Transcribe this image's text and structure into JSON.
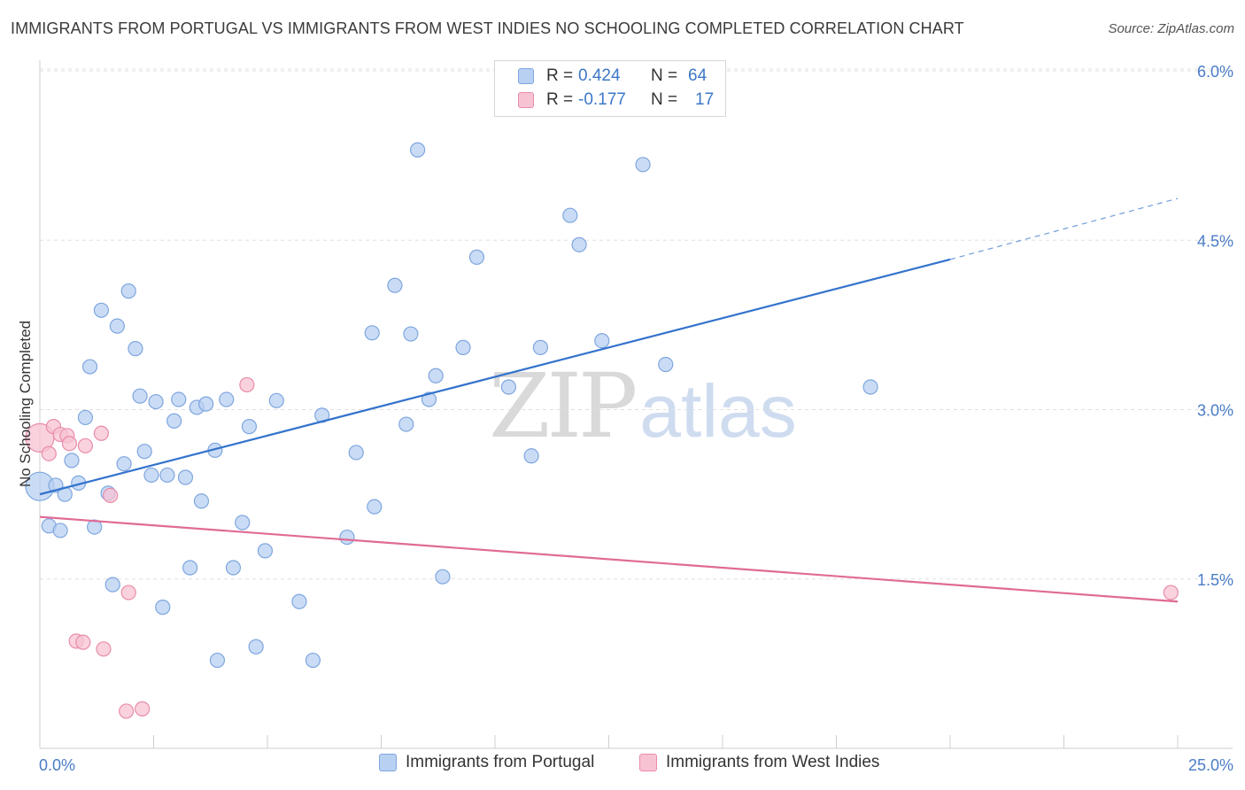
{
  "title": "IMMIGRANTS FROM PORTUGAL VS IMMIGRANTS FROM WEST INDIES NO SCHOOLING COMPLETED CORRELATION CHART",
  "source": "Source: ZipAtlas.com",
  "watermark": {
    "zip": "ZIP",
    "atlas": "atlas"
  },
  "legend": {
    "r_label": "R =",
    "n_label": "N =",
    "series": [
      {
        "r": "0.424",
        "n": "64"
      },
      {
        "r": "-0.177",
        "n": "17"
      }
    ]
  },
  "bottom_legend": [
    "Immigrants from Portugal",
    "Immigrants from West Indies"
  ],
  "colors": {
    "portugal_fill": "#b8d0f2",
    "portugal_stroke": "#7ea6df",
    "portugal_line": "#3373cc",
    "westindies_fill": "#f7c3d3",
    "westindies_stroke": "#e98ca8",
    "westindies_line": "#e06b94",
    "tick_label": "#4a7cc7",
    "grid": "#e0e0e0"
  },
  "chart_data": {
    "type": "scatter",
    "xlabel": "",
    "ylabel": "No Schooling Completed",
    "xlim": [
      0,
      25
    ],
    "ylim": [
      0,
      6.2
    ],
    "x_tick_labels": [
      {
        "value": 0,
        "label": "0.0%"
      },
      {
        "value": 25,
        "label": "25.0%"
      }
    ],
    "y_tick_labels": [
      {
        "value": 1.5,
        "label": "1.5%"
      },
      {
        "value": 3.0,
        "label": "3.0%"
      },
      {
        "value": 4.5,
        "label": "4.5%"
      },
      {
        "value": 6.0,
        "label": "6.0%"
      }
    ],
    "x_minor_ticks": [
      2.5,
      5,
      7.5,
      10,
      12.5,
      15,
      17.5,
      20,
      22.5,
      25
    ],
    "grid": true,
    "series": [
      {
        "name": "Immigrants from Portugal",
        "trend": {
          "x": [
            0,
            20
          ],
          "y": [
            2.25,
            4.33
          ],
          "dashed_to": {
            "x": 25,
            "y": 4.87
          }
        },
        "points": [
          {
            "x": 0.0,
            "y": 2.32,
            "big": true
          },
          {
            "x": 0.2,
            "y": 1.97
          },
          {
            "x": 0.35,
            "y": 2.33
          },
          {
            "x": 0.45,
            "y": 1.93
          },
          {
            "x": 0.55,
            "y": 2.25
          },
          {
            "x": 0.7,
            "y": 2.55
          },
          {
            "x": 0.85,
            "y": 2.35
          },
          {
            "x": 1.0,
            "y": 2.93
          },
          {
            "x": 1.1,
            "y": 3.38
          },
          {
            "x": 1.2,
            "y": 1.96
          },
          {
            "x": 1.35,
            "y": 3.88
          },
          {
            "x": 1.5,
            "y": 2.26
          },
          {
            "x": 1.6,
            "y": 1.45
          },
          {
            "x": 1.7,
            "y": 3.74
          },
          {
            "x": 1.85,
            "y": 2.52
          },
          {
            "x": 1.95,
            "y": 4.05
          },
          {
            "x": 2.1,
            "y": 3.54
          },
          {
            "x": 2.2,
            "y": 3.12
          },
          {
            "x": 2.3,
            "y": 2.63
          },
          {
            "x": 2.45,
            "y": 2.42
          },
          {
            "x": 2.55,
            "y": 3.07
          },
          {
            "x": 2.7,
            "y": 1.25
          },
          {
            "x": 2.8,
            "y": 2.42
          },
          {
            "x": 2.95,
            "y": 2.9
          },
          {
            "x": 3.05,
            "y": 3.09
          },
          {
            "x": 3.2,
            "y": 2.4
          },
          {
            "x": 3.3,
            "y": 1.6
          },
          {
            "x": 3.45,
            "y": 3.02
          },
          {
            "x": 3.55,
            "y": 2.19
          },
          {
            "x": 3.65,
            "y": 3.05
          },
          {
            "x": 3.85,
            "y": 2.64
          },
          {
            "x": 3.9,
            "y": 0.78
          },
          {
            "x": 4.1,
            "y": 3.09
          },
          {
            "x": 4.25,
            "y": 1.6
          },
          {
            "x": 4.45,
            "y": 2.0
          },
          {
            "x": 4.6,
            "y": 2.85
          },
          {
            "x": 4.75,
            "y": 0.9
          },
          {
            "x": 4.95,
            "y": 1.75
          },
          {
            "x": 5.2,
            "y": 3.08
          },
          {
            "x": 5.7,
            "y": 1.3
          },
          {
            "x": 6.0,
            "y": 0.78
          },
          {
            "x": 6.2,
            "y": 2.95
          },
          {
            "x": 6.75,
            "y": 1.87
          },
          {
            "x": 6.95,
            "y": 2.62
          },
          {
            "x": 7.3,
            "y": 3.68
          },
          {
            "x": 7.35,
            "y": 2.14
          },
          {
            "x": 7.8,
            "y": 4.1
          },
          {
            "x": 8.05,
            "y": 2.87
          },
          {
            "x": 8.15,
            "y": 3.67
          },
          {
            "x": 8.3,
            "y": 5.3
          },
          {
            "x": 8.55,
            "y": 3.09
          },
          {
            "x": 8.7,
            "y": 3.3
          },
          {
            "x": 8.85,
            "y": 1.52
          },
          {
            "x": 9.3,
            "y": 3.55
          },
          {
            "x": 9.6,
            "y": 4.35
          },
          {
            "x": 10.3,
            "y": 3.2
          },
          {
            "x": 10.8,
            "y": 2.59
          },
          {
            "x": 11.0,
            "y": 3.55
          },
          {
            "x": 11.65,
            "y": 4.72
          },
          {
            "x": 11.85,
            "y": 4.46
          },
          {
            "x": 12.35,
            "y": 3.61
          },
          {
            "x": 13.25,
            "y": 5.17
          },
          {
            "x": 13.75,
            "y": 3.4
          },
          {
            "x": 18.25,
            "y": 3.2
          }
        ]
      },
      {
        "name": "Immigrants from West Indies",
        "trend": {
          "x": [
            0,
            25
          ],
          "y": [
            2.05,
            1.3
          ]
        },
        "points": [
          {
            "x": 0.0,
            "y": 2.75,
            "big": true
          },
          {
            "x": 0.2,
            "y": 2.61
          },
          {
            "x": 0.3,
            "y": 2.85
          },
          {
            "x": 0.45,
            "y": 2.78
          },
          {
            "x": 0.6,
            "y": 2.77
          },
          {
            "x": 0.65,
            "y": 2.7
          },
          {
            "x": 0.8,
            "y": 0.95
          },
          {
            "x": 0.95,
            "y": 0.94
          },
          {
            "x": 1.0,
            "y": 2.68
          },
          {
            "x": 1.35,
            "y": 2.79
          },
          {
            "x": 1.4,
            "y": 0.88
          },
          {
            "x": 1.55,
            "y": 2.24
          },
          {
            "x": 1.9,
            "y": 0.33
          },
          {
            "x": 1.95,
            "y": 1.38
          },
          {
            "x": 2.25,
            "y": 0.35
          },
          {
            "x": 4.55,
            "y": 3.22
          },
          {
            "x": 24.85,
            "y": 1.38
          }
        ]
      }
    ]
  }
}
